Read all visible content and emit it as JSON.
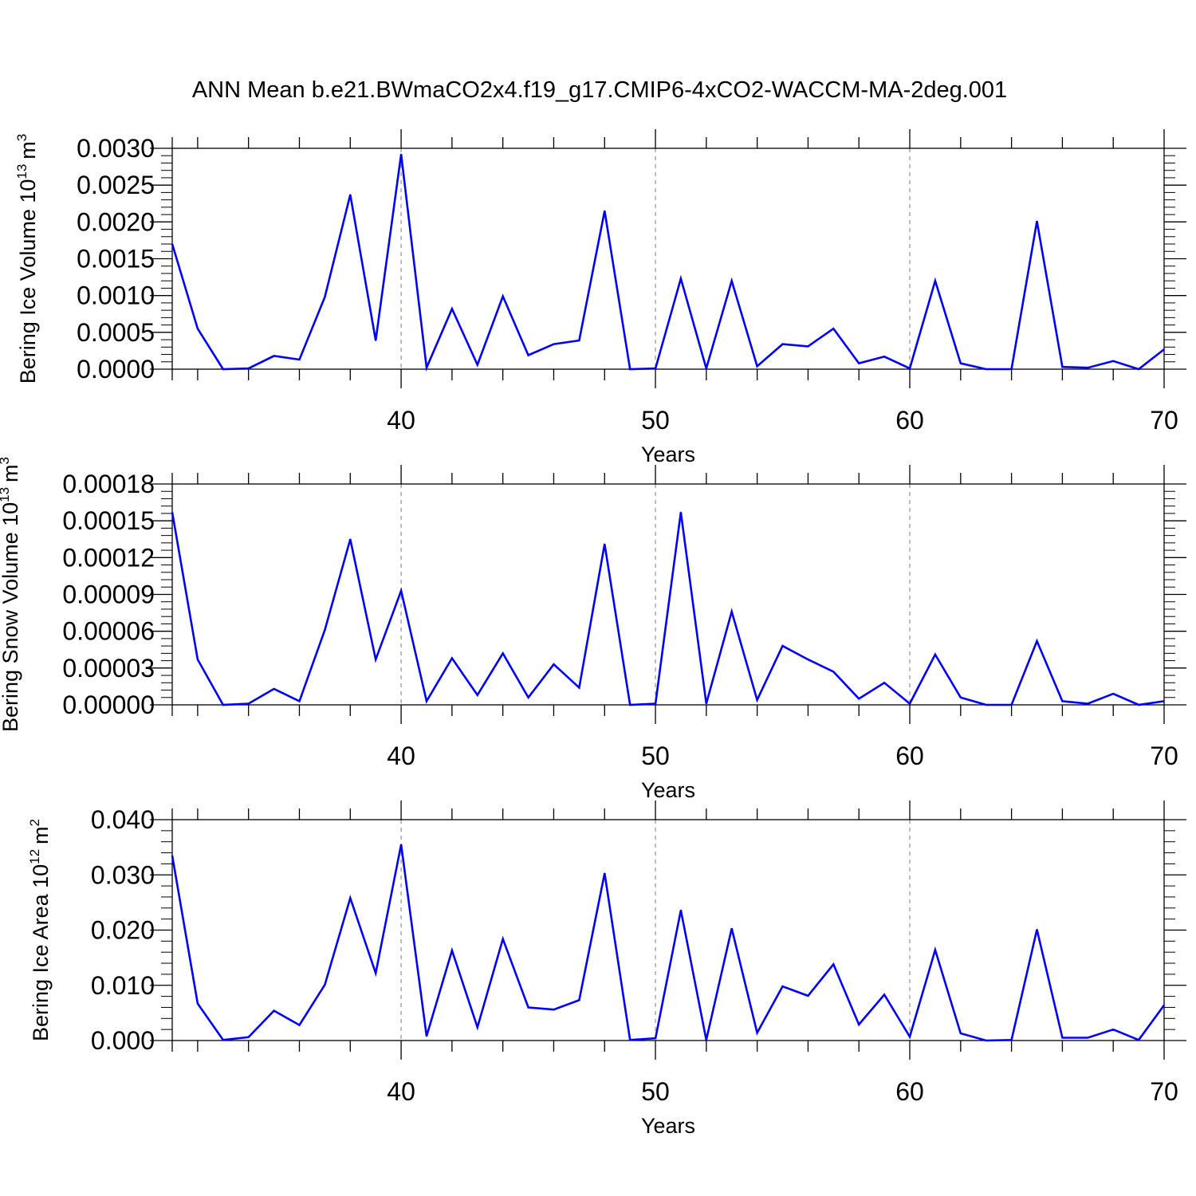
{
  "title": "ANN Mean b.e21.BWmaCO2x4.f19_g17.CMIP6-4xCO2-WACCM-MA-2deg.001",
  "colors": {
    "line": "#0000ff",
    "axis": "#000000",
    "grid": "#999999"
  },
  "chart_data": [
    {
      "type": "line",
      "ylabel": "Bering Ice Volume 10",
      "ylabel_sup": "13",
      "ylabel_unit": "m",
      "ylabel_unit_sup": "3",
      "xlabel": "Years",
      "xlim": [
        31,
        70
      ],
      "ylim": [
        0,
        0.003
      ],
      "yticks": [
        "0.0000",
        "0.0005",
        "0.0010",
        "0.0015",
        "0.0020",
        "0.0025",
        "0.0030"
      ],
      "xticks": [
        "40",
        "50",
        "60",
        "70"
      ],
      "grid_x": [
        40,
        50,
        60
      ],
      "series": [
        {
          "x": [
            31,
            32,
            33,
            34,
            35,
            36,
            37,
            38,
            39,
            40,
            41,
            42,
            43,
            44,
            45,
            46,
            47,
            48,
            49,
            50,
            51,
            52,
            53,
            54,
            55,
            56,
            57,
            58,
            59,
            60,
            61,
            62,
            63,
            64,
            65,
            66,
            67,
            68,
            69,
            70
          ],
          "values": [
            0.0017,
            0.00055,
            0.0,
            1e-05,
            0.00018,
            0.00013,
            0.00098,
            0.00237,
            0.00039,
            0.00292,
            2e-05,
            0.00082,
            6e-05,
            0.00099,
            0.00019,
            0.00034,
            0.00039,
            0.00215,
            0.0,
            1e-05,
            0.00123,
            1e-05,
            0.0012,
            4e-05,
            0.00034,
            0.00031,
            0.00055,
            8e-05,
            0.00017,
            1e-05,
            0.0012,
            8e-05,
            0.0,
            0.0,
            0.00201,
            3e-05,
            2e-05,
            0.00011,
            0.0,
            0.00027
          ]
        }
      ]
    },
    {
      "type": "line",
      "ylabel": "Bering Snow Volume 10",
      "ylabel_sup": "13",
      "ylabel_unit": "m",
      "ylabel_unit_sup": "3",
      "xlabel": "Years",
      "xlim": [
        31,
        70
      ],
      "ylim": [
        0,
        0.00018
      ],
      "yticks": [
        "0.00000",
        "0.00003",
        "0.00006",
        "0.00009",
        "0.00012",
        "0.00015",
        "0.00018"
      ],
      "xticks": [
        "40",
        "50",
        "60",
        "70"
      ],
      "grid_x": [
        40,
        50,
        60
      ],
      "series": [
        {
          "x": [
            31,
            32,
            33,
            34,
            35,
            36,
            37,
            38,
            39,
            40,
            41,
            42,
            43,
            44,
            45,
            46,
            47,
            48,
            49,
            50,
            51,
            52,
            53,
            54,
            55,
            56,
            57,
            58,
            59,
            60,
            61,
            62,
            63,
            64,
            65,
            66,
            67,
            68,
            69,
            70
          ],
          "values": [
            0.000157,
            3.7e-05,
            0.0,
            1e-06,
            1.3e-05,
            3e-06,
            6.1e-05,
            0.000135,
            3.7e-05,
            9.3e-05,
            3e-06,
            3.8e-05,
            8e-06,
            4.2e-05,
            6e-06,
            3.3e-05,
            1.4e-05,
            0.000131,
            0.0,
            1e-06,
            0.000157,
            1e-06,
            7.6e-05,
            4e-06,
            4.8e-05,
            3.7e-05,
            2.7e-05,
            5e-06,
            1.8e-05,
            1e-06,
            4.1e-05,
            6e-06,
            0.0,
            0.0,
            5.2e-05,
            3e-06,
            1e-06,
            9e-06,
            0.0,
            3e-06
          ]
        }
      ]
    },
    {
      "type": "line",
      "ylabel": "Bering Ice Area 10",
      "ylabel_sup": "12",
      "ylabel_unit": "m",
      "ylabel_unit_sup": "2",
      "xlabel": "Years",
      "xlim": [
        31,
        70
      ],
      "ylim": [
        0,
        0.04
      ],
      "yticks": [
        "0.000",
        "0.010",
        "0.020",
        "0.030",
        "0.040"
      ],
      "xticks": [
        "40",
        "50",
        "60",
        "70"
      ],
      "grid_x": [
        40,
        50,
        60
      ],
      "series": [
        {
          "x": [
            31,
            32,
            33,
            34,
            35,
            36,
            37,
            38,
            39,
            40,
            41,
            42,
            43,
            44,
            45,
            46,
            47,
            48,
            49,
            50,
            51,
            52,
            53,
            54,
            55,
            56,
            57,
            58,
            59,
            60,
            61,
            62,
            63,
            64,
            65,
            66,
            67,
            68,
            69,
            70
          ],
          "values": [
            0.0335,
            0.0067,
            0.0001,
            0.0006,
            0.0054,
            0.0028,
            0.0101,
            0.0258,
            0.0122,
            0.0355,
            0.0008,
            0.0163,
            0.0024,
            0.0184,
            0.006,
            0.0056,
            0.0073,
            0.0303,
            0.0001,
            0.0004,
            0.0236,
            0.0001,
            0.0203,
            0.0014,
            0.0098,
            0.0081,
            0.0138,
            0.0029,
            0.0083,
            0.0007,
            0.0164,
            0.0013,
            0.0,
            0.0001,
            0.0201,
            0.0005,
            0.0005,
            0.002,
            0.0001,
            0.0064
          ]
        }
      ]
    }
  ]
}
